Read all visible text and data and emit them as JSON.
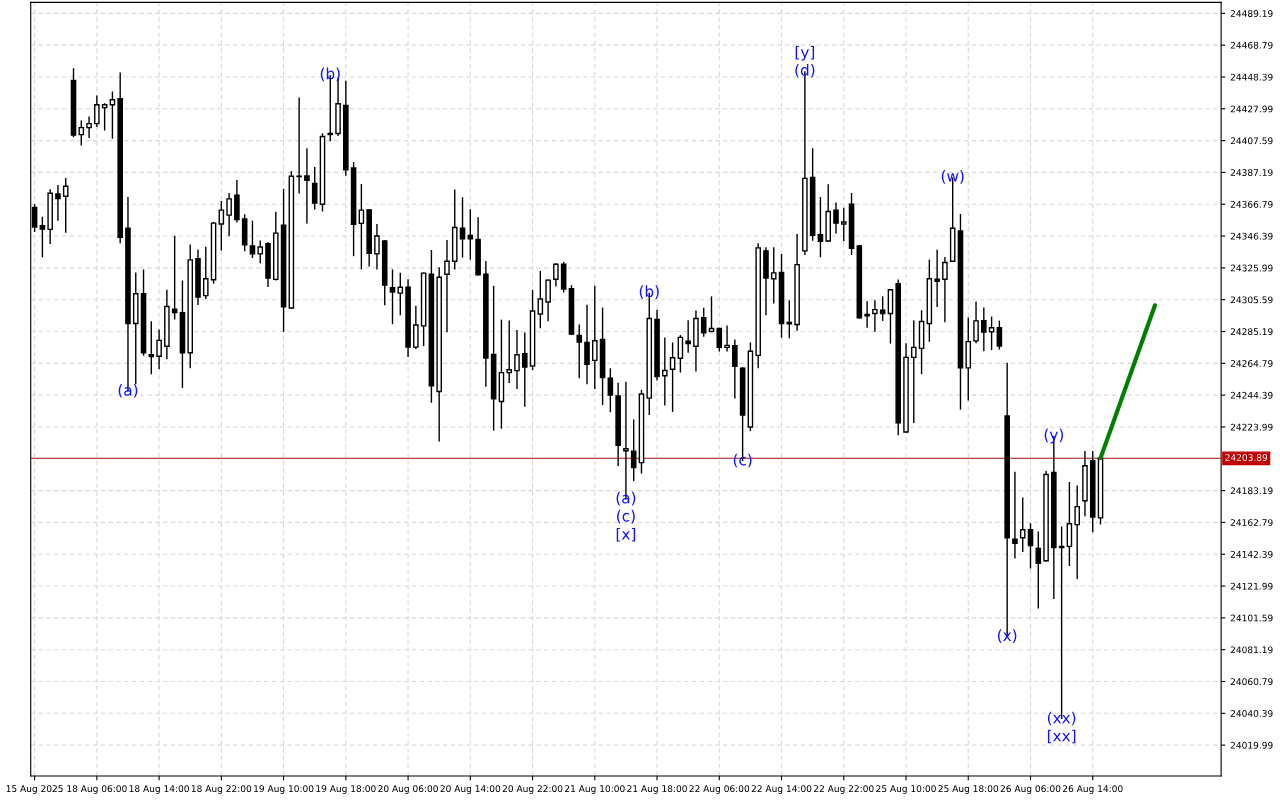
{
  "chart_data": {
    "type": "candlestick",
    "categories": [
      "15 Aug 2025",
      null,
      null,
      null,
      null,
      null,
      null,
      null,
      "18 Aug 06:00",
      null,
      null,
      null,
      null,
      null,
      null,
      null,
      "18 Aug 14:00",
      null,
      null,
      null,
      null,
      null,
      null,
      null,
      "18 Aug 22:00",
      null,
      null,
      null,
      null,
      null,
      null,
      null,
      "19 Aug 10:00",
      null,
      null,
      null,
      null,
      null,
      null,
      null,
      "19 Aug 18:00",
      null,
      null,
      null,
      null,
      null,
      null,
      null,
      "20 Aug 06:00",
      null,
      null,
      null,
      null,
      null,
      null,
      null,
      "20 Aug 14:00",
      null,
      null,
      null,
      null,
      null,
      null,
      null,
      "20 Aug 22:00",
      null,
      null,
      null,
      null,
      null,
      null,
      null,
      "21 Aug 10:00",
      null,
      null,
      null,
      null,
      null,
      null,
      null,
      "21 Aug 18:00",
      null,
      null,
      null,
      null,
      null,
      null,
      null,
      "22 Aug 06:00",
      null,
      null,
      null,
      null,
      null,
      null,
      null,
      "22 Aug 14:00",
      null,
      null,
      null,
      null,
      null,
      null,
      null,
      "22 Aug 22:00",
      null,
      null,
      null,
      null,
      null,
      null,
      null,
      "25 Aug 10:00",
      null,
      null,
      null,
      null,
      null,
      null,
      null,
      "25 Aug 18:00",
      null,
      null,
      null,
      null,
      null,
      null,
      null,
      "26 Aug 06:00",
      null,
      null,
      null,
      null,
      null,
      null,
      null,
      "26 Aug 14:00",
      null,
      null,
      null,
      null,
      null,
      null,
      null,
      null,
      null,
      null,
      null,
      null,
      null,
      null,
      null,
      null
    ],
    "ohlc": [
      [
        24364.7,
        24367.0,
        24349.0,
        24352.2
      ],
      [
        24353.0,
        24358.8,
        24332.8,
        24350.9
      ],
      [
        24350.7,
        24376.4,
        24341.3,
        24373.8
      ],
      [
        24373.4,
        24379.2,
        24356.2,
        24370.4
      ],
      [
        24371.9,
        24383.6,
        24348.5,
        24378.3
      ],
      [
        24446.1,
        24454.0,
        24409.8,
        24411.2
      ],
      [
        24411.4,
        24420.4,
        24404.4,
        24415.9
      ],
      [
        24415.9,
        24423.1,
        24409.3,
        24418.5
      ],
      [
        24418.5,
        24436.5,
        24416.3,
        24430.6
      ],
      [
        24428.7,
        24431.6,
        24414.0,
        24430.6
      ],
      [
        24430.6,
        24439.1,
        24408.7,
        24433.8
      ],
      [
        24434.4,
        24451.2,
        24341.8,
        24345.6
      ],
      [
        24351.5,
        24371.5,
        24246.8,
        24290.3
      ],
      [
        24290.3,
        24323.0,
        24251.4,
        24309.4
      ],
      [
        24309.4,
        24325.0,
        24269.7,
        24271.6
      ],
      [
        24270.3,
        24291.8,
        24257.8,
        24269.1
      ],
      [
        24269.3,
        24286.5,
        24261.0,
        24279.5
      ],
      [
        24275.7,
        24312.0,
        24267.4,
        24301.2
      ],
      [
        24299.5,
        24346.6,
        24292.9,
        24297.3
      ],
      [
        24297.3,
        24317.9,
        24248.9,
        24271.6
      ],
      [
        24271.6,
        24340.9,
        24261.6,
        24331.1
      ],
      [
        24331.8,
        24337.7,
        24302.2,
        24307.3
      ],
      [
        24308.2,
        24339.6,
        24306.1,
        24319.0
      ],
      [
        24318.4,
        24355.4,
        24315.8,
        24354.7
      ],
      [
        24354.1,
        24368.9,
        24337.1,
        24363.0
      ],
      [
        24359.8,
        24374.0,
        24346.2,
        24370.2
      ],
      [
        24372.6,
        24382.3,
        24355.1,
        24357.0
      ],
      [
        24357.3,
        24360.4,
        24336.7,
        24340.7
      ],
      [
        24340.1,
        24356.2,
        24332.4,
        24335.0
      ],
      [
        24335.0,
        24343.5,
        24329.0,
        24339.4
      ],
      [
        24341.5,
        24342.4,
        24313.7,
        24319.4
      ],
      [
        24318.6,
        24361.9,
        24317.9,
        24348.3
      ],
      [
        24353.4,
        24376.6,
        24285.0,
        24301.0
      ],
      [
        24300.3,
        24388.1,
        24299.9,
        24384.7
      ],
      [
        24384.7,
        24435.2,
        24373.6,
        24384.5
      ],
      [
        24384.9,
        24402.7,
        24354.5,
        24382.1
      ],
      [
        24380.2,
        24390.6,
        24363.4,
        24367.5
      ],
      [
        24366.8,
        24412.3,
        24362.1,
        24410.2
      ],
      [
        24412.1,
        24449.7,
        24407.2,
        24411.4
      ],
      [
        24412.1,
        24448.0,
        24410.6,
        24431.2
      ],
      [
        24430.1,
        24445.9,
        24385.1,
        24388.9
      ],
      [
        24390.0,
        24393.8,
        24333.5,
        24353.9
      ],
      [
        24354.5,
        24379.8,
        24325.0,
        24363.0
      ],
      [
        24363.2,
        24363.6,
        24326.9,
        24335.4
      ],
      [
        24335.0,
        24354.1,
        24325.0,
        24346.4
      ],
      [
        24343.2,
        24343.9,
        24302.0,
        24315.0
      ],
      [
        24313.3,
        24325.0,
        24289.9,
        24310.5
      ],
      [
        24309.8,
        24322.8,
        24295.6,
        24313.6
      ],
      [
        24313.6,
        24318.7,
        24268.8,
        24275.2
      ],
      [
        24275.2,
        24301.7,
        24273.9,
        24289.4
      ],
      [
        24288.8,
        24323.0,
        24275.8,
        24322.6
      ],
      [
        24321.9,
        24337.4,
        24239.5,
        24250.3
      ],
      [
        24246.7,
        24326.4,
        24214.6,
        24320.0
      ],
      [
        24321.9,
        24343.8,
        24284.7,
        24330.2
      ],
      [
        24330.2,
        24376.3,
        24324.9,
        24351.9
      ],
      [
        24351.5,
        24371.2,
        24332.6,
        24344.7
      ],
      [
        24346.8,
        24363.6,
        24331.3,
        24344.7
      ],
      [
        24344.2,
        24358.5,
        24321.1,
        24321.5
      ],
      [
        24321.9,
        24330.4,
        24249.7,
        24268.2
      ],
      [
        24270.5,
        24314.5,
        24221.6,
        24242.0
      ],
      [
        24240.3,
        24292.8,
        24222.9,
        24258.8
      ],
      [
        24258.8,
        24292.2,
        24252.2,
        24260.7
      ],
      [
        24260.1,
        24286.2,
        24248.4,
        24270.3
      ],
      [
        24270.9,
        24284.5,
        24236.9,
        24262.4
      ],
      [
        24263.1,
        24311.9,
        24260.5,
        24298.3
      ],
      [
        24296.4,
        24324.0,
        24287.3,
        24306.0
      ],
      [
        24304.1,
        24318.5,
        24291.8,
        24318.1
      ],
      [
        24318.7,
        24328.9,
        24314.1,
        24328.3
      ],
      [
        24328.3,
        24329.8,
        24310.2,
        24312.4
      ],
      [
        24312.6,
        24314.9,
        24283.0,
        24283.5
      ],
      [
        24282.7,
        24289.7,
        24255.3,
        24278.4
      ],
      [
        24278.2,
        24302.4,
        24251.4,
        24264.2
      ],
      [
        24266.7,
        24314.5,
        24248.3,
        24279.3
      ],
      [
        24280.1,
        24300.5,
        24238.0,
        24255.7
      ],
      [
        24255.3,
        24261.6,
        24233.4,
        24244.4
      ],
      [
        24243.8,
        24252.3,
        24199.0,
        24212.3
      ],
      [
        24208.7,
        24252.9,
        24177.7,
        24210.0
      ],
      [
        24208.5,
        24228.7,
        24189.4,
        24197.9
      ],
      [
        24201.1,
        24247.8,
        24194.1,
        24245.1
      ],
      [
        24242.5,
        24310.1,
        24231.7,
        24293.5
      ],
      [
        24292.9,
        24299.2,
        24253.8,
        24256.3
      ],
      [
        24256.8,
        24281.4,
        24237.8,
        24260.2
      ],
      [
        24261.0,
        24278.2,
        24233.6,
        24268.4
      ],
      [
        24268.0,
        24282.9,
        24258.9,
        24281.4
      ],
      [
        24278.9,
        24292.4,
        24271.6,
        24277.4
      ],
      [
        24275.7,
        24298.6,
        24259.5,
        24293.5
      ],
      [
        24294.1,
        24300.5,
        24281.8,
        24284.4
      ],
      [
        24285.2,
        24307.7,
        24284.8,
        24287.1
      ],
      [
        24287.1,
        24287.6,
        24272.3,
        24275.0
      ],
      [
        24275.0,
        24289.1,
        24272.3,
        24276.3
      ],
      [
        24276.1,
        24280.1,
        24242.3,
        24262.9
      ],
      [
        24261.6,
        24262.3,
        24202.1,
        24231.7
      ],
      [
        24224.0,
        24278.2,
        24221.3,
        24272.5
      ],
      [
        24269.9,
        24341.7,
        24261.6,
        24338.8
      ],
      [
        24336.9,
        24339.2,
        24295.6,
        24319.4
      ],
      [
        24319.0,
        24339.2,
        24303.1,
        24322.8
      ],
      [
        24323.0,
        24334.9,
        24281.2,
        24290.3
      ],
      [
        24291.0,
        24305.2,
        24280.8,
        24290.1
      ],
      [
        24289.7,
        24347.7,
        24285.6,
        24328.1
      ],
      [
        24336.9,
        24452.0,
        24334.3,
        24383.4
      ],
      [
        24384.0,
        24402.7,
        24343.4,
        24346.8
      ],
      [
        24347.3,
        24371.5,
        24332.8,
        24343.1
      ],
      [
        24343.2,
        24379.6,
        24342.8,
        24362.1
      ],
      [
        24363.0,
        24367.9,
        24348.1,
        24354.7
      ],
      [
        24354.1,
        24364.5,
        24343.0,
        24355.4
      ],
      [
        24366.8,
        24374.0,
        24334.3,
        24338.6
      ],
      [
        24340.1,
        24340.7,
        24293.5,
        24293.9
      ],
      [
        24296.1,
        24304.6,
        24287.6,
        24295.2
      ],
      [
        24296.7,
        24305.2,
        24285.0,
        24299.2
      ],
      [
        24298.8,
        24307.7,
        24292.0,
        24296.7
      ],
      [
        24296.7,
        24312.4,
        24277.4,
        24312.0
      ],
      [
        24315.8,
        24318.6,
        24218.7,
        24226.6
      ],
      [
        24220.8,
        24277.6,
        24220.4,
        24268.6
      ],
      [
        24268.6,
        24292.4,
        24226.6,
        24275.0
      ],
      [
        24274.4,
        24298.8,
        24257.8,
        24291.6
      ],
      [
        24290.3,
        24331.3,
        24278.6,
        24319.0
      ],
      [
        24318.7,
        24337.6,
        24300.9,
        24317.4
      ],
      [
        24318.7,
        24333.0,
        24291.2,
        24329.4
      ],
      [
        24330.2,
        24384.0,
        24329.7,
        24351.4
      ],
      [
        24349.6,
        24360.5,
        24235.1,
        24261.9
      ],
      [
        24261.9,
        24294.2,
        24241.0,
        24278.7
      ],
      [
        24279.2,
        24304.4,
        24277.7,
        24292.0
      ],
      [
        24292.2,
        24300.6,
        24272.6,
        24284.8
      ],
      [
        24285.0,
        24294.8,
        24273.3,
        24287.6
      ],
      [
        24287.6,
        24292.2,
        24273.6,
        24275.9
      ],
      [
        24231.0,
        24265.2,
        24089.5,
        24153.0
      ],
      [
        24152.0,
        24195.3,
        24139.7,
        24149.4
      ],
      [
        24153.0,
        24178.7,
        24143.8,
        24158.1
      ],
      [
        24158.1,
        24162.2,
        24133.3,
        24147.9
      ],
      [
        24146.1,
        24157.0,
        24107.6,
        24136.6
      ],
      [
        24138.2,
        24195.8,
        24137.7,
        24193.5
      ],
      [
        24194.8,
        24218.2,
        24113.7,
        24146.6
      ],
      [
        24147.4,
        24160.1,
        24036.7,
        24146.6
      ],
      [
        24147.4,
        24188.7,
        24134.9,
        24161.9
      ],
      [
        24161.4,
        24186.4,
        24126.5,
        24172.9
      ],
      [
        24176.7,
        24208.6,
        24166.7,
        24199.1
      ],
      [
        24202.4,
        24208.6,
        24156.5,
        24166.2
      ],
      [
        24165.7,
        24204.5,
        24161.4,
        24203.89
      ],
      null,
      null,
      null,
      null,
      null,
      null,
      null,
      null,
      null,
      null,
      null,
      null,
      null,
      null,
      null
    ],
    "series": [
      {
        "type": "line",
        "color": "#008000",
        "values": [
          null,
          null,
          null,
          null,
          null,
          null,
          null,
          null,
          null,
          null,
          null,
          null,
          null,
          null,
          null,
          null,
          null,
          null,
          null,
          null,
          null,
          null,
          null,
          null,
          null,
          null,
          null,
          null,
          null,
          null,
          null,
          null,
          null,
          null,
          null,
          null,
          null,
          null,
          null,
          null,
          null,
          null,
          null,
          null,
          null,
          null,
          null,
          null,
          null,
          null,
          null,
          null,
          null,
          null,
          null,
          null,
          null,
          null,
          null,
          null,
          null,
          null,
          null,
          null,
          null,
          null,
          null,
          null,
          null,
          null,
          null,
          null,
          null,
          null,
          null,
          null,
          null,
          null,
          null,
          null,
          null,
          null,
          null,
          null,
          null,
          null,
          null,
          null,
          null,
          null,
          null,
          null,
          null,
          null,
          null,
          null,
          null,
          null,
          null,
          null,
          null,
          null,
          null,
          null,
          null,
          null,
          null,
          null,
          null,
          null,
          null,
          null,
          null,
          null,
          null,
          null,
          null,
          null,
          null,
          null,
          null,
          null,
          null,
          null,
          null,
          null,
          null,
          null,
          null,
          null,
          null,
          null,
          null,
          null,
          null,
          null,
          null,
          24204,
          null,
          null,
          null,
          null,
          null,
          null,
          24302,
          null,
          null,
          null,
          null,
          null,
          null,
          null,
          null
        ]
      }
    ],
    "ylim": [
      24000.2,
      24496.2
    ],
    "yticks": [
      24489.19,
      24468.79,
      24448.39,
      24427.99,
      24407.59,
      24387.19,
      24366.79,
      24346.39,
      24325.99,
      24305.59,
      24285.19,
      24264.79,
      24244.39,
      24223.99,
      24183.19,
      24162.79,
      24142.39,
      24121.99,
      24101.59,
      24081.19,
      24060.79,
      24040.39,
      24019.99
    ],
    "grid": true,
    "ref_lines": [
      {
        "axis": "y",
        "value": 24203.89,
        "label": "24203.89",
        "color": "#a01010"
      }
    ],
    "annotations": [
      {
        "text": "(a)",
        "y": 24246.8
      },
      {
        "text": "(b)",
        "y": 24449.7
      },
      {
        "text": "(b)",
        "y": 24310.1
      },
      {
        "text": "(a)",
        "y": 24177.7
      },
      {
        "text": "(c)",
        "y": 24177.7
      },
      {
        "text": "[x]",
        "y": 24177.7
      },
      {
        "text": "(c)",
        "y": 24202.1
      },
      {
        "text": "(d)",
        "y": 24452.0
      },
      {
        "text": "[y]",
        "y": 24452.0
      },
      {
        "text": "(w)",
        "y": 24384.0
      },
      {
        "text": "(y)",
        "y": 24218.2
      },
      {
        "text": "(x)",
        "y": 24089.5
      },
      {
        "text": "(xx)",
        "y": 24036.7
      },
      {
        "text": "[xx]",
        "y": 24036.7
      }
    ]
  }
}
